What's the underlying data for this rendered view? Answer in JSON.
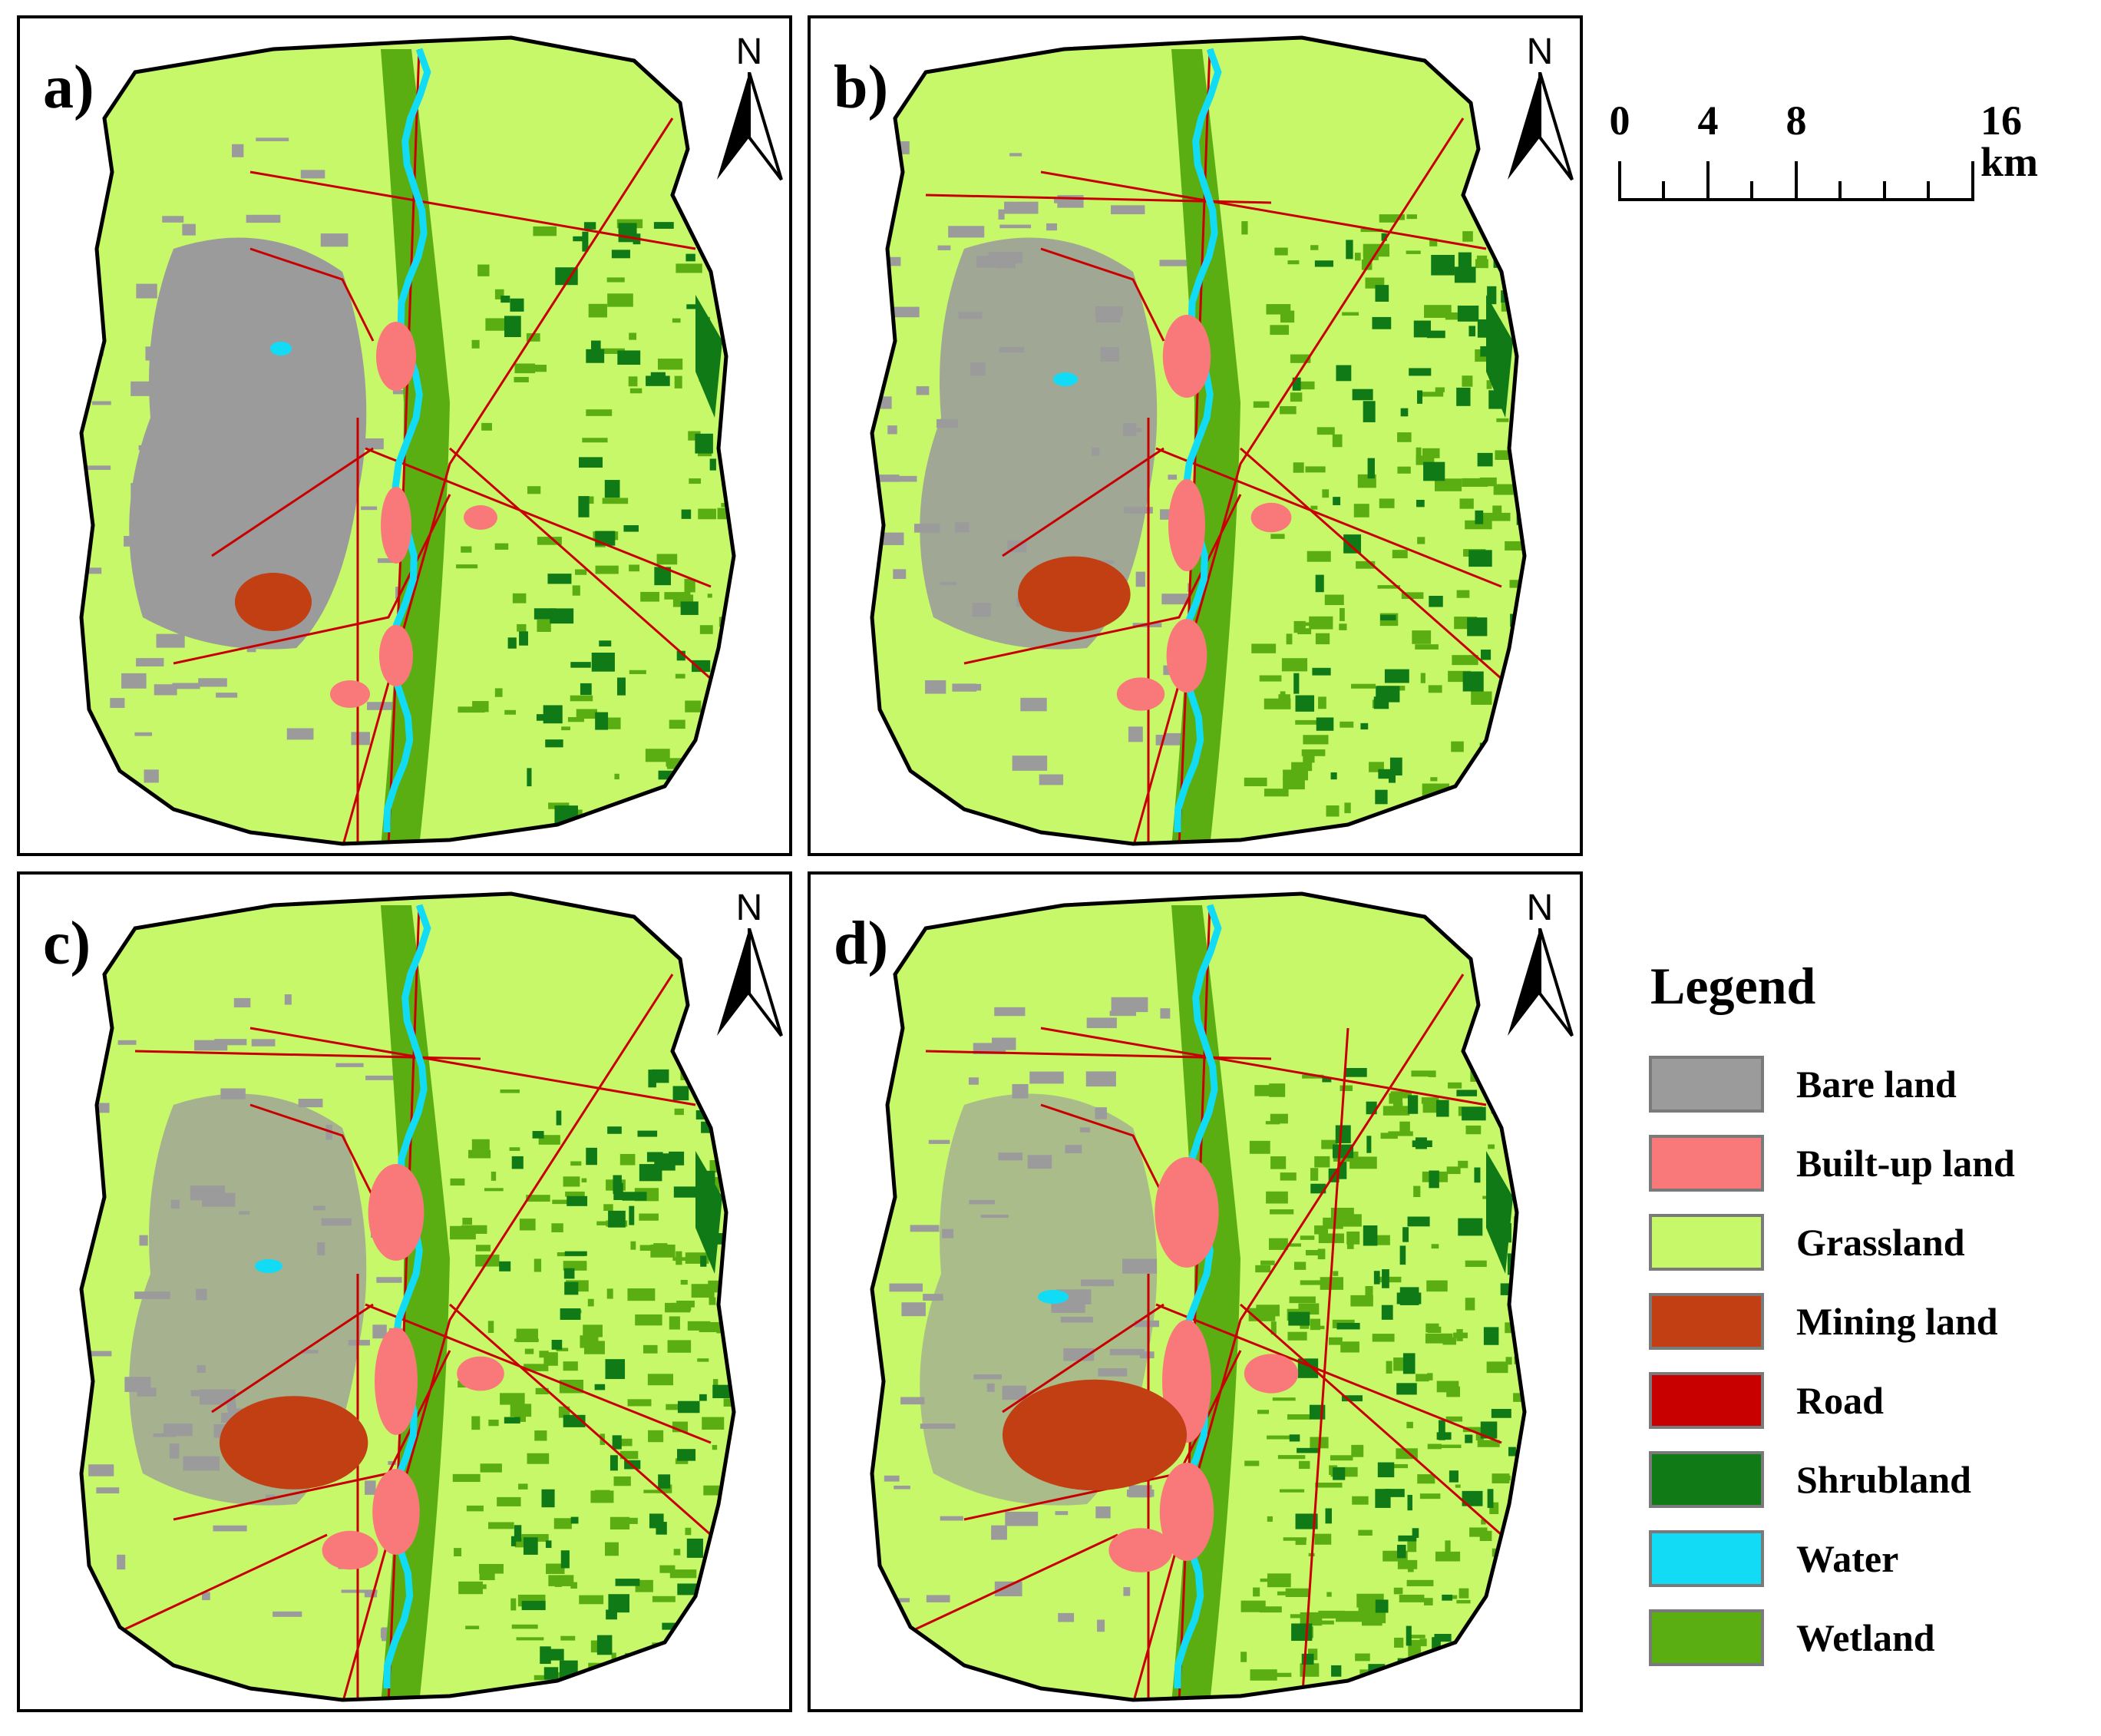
{
  "panels": [
    {
      "label": "a)"
    },
    {
      "label": "b)"
    },
    {
      "label": "c)"
    },
    {
      "label": "d)"
    }
  ],
  "north_arrow": {
    "letter": "N",
    "icon": "north-arrow-icon"
  },
  "scale_bar": {
    "ticks": [
      "0",
      "4",
      "8",
      "16 km"
    ],
    "values_km": [
      0,
      4,
      8,
      16
    ]
  },
  "legend": {
    "title": "Legend",
    "items": [
      {
        "label": "Bare land",
        "color": "#9b9b9b"
      },
      {
        "label": "Built-up land",
        "color": "#f9787a"
      },
      {
        "label": "Grassland",
        "color": "#c6f86a"
      },
      {
        "label": "Mining land",
        "color": "#c13f12"
      },
      {
        "label": "Road",
        "color": "#c80000"
      },
      {
        "label": "Shrubland",
        "color": "#0f7a16"
      },
      {
        "label": "Water",
        "color": "#12dcf5"
      },
      {
        "label": "Wetland",
        "color": "#5aae12"
      }
    ]
  }
}
